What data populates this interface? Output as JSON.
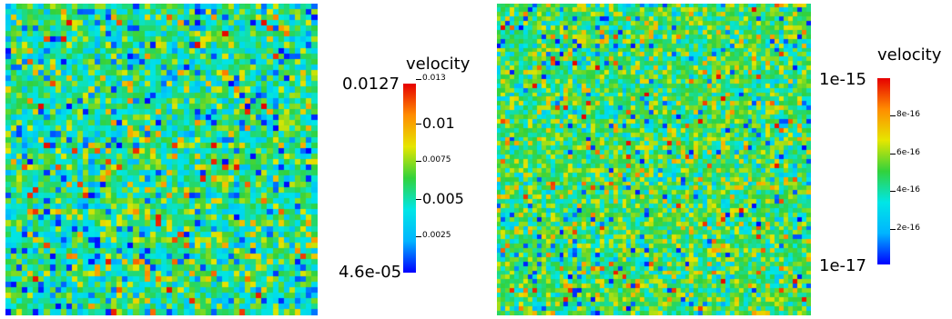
{
  "chart_data": [
    {
      "type": "heatmap",
      "title": "",
      "colorbar": {
        "title": "velocity",
        "range_label_max": "0.0127",
        "range_label_min": "4.6e-05",
        "min": 4.6e-05,
        "max": 0.0127,
        "ticks": [
          {
            "value": 0.013,
            "label": "0.013"
          },
          {
            "value": 0.01,
            "label": "0.01",
            "large": true
          },
          {
            "value": 0.0075,
            "label": "0.0075"
          },
          {
            "value": 0.005,
            "label": "0.005",
            "large": true
          },
          {
            "value": 0.0025,
            "label": "0.0025"
          }
        ],
        "colormap": [
          "#0000ff",
          "#00b4ff",
          "#00e6e6",
          "#32d23c",
          "#e6e600",
          "#ff8c00",
          "#e60000"
        ]
      },
      "grid": {
        "rows": 56,
        "cols": 56,
        "distribution": "mostly cyan/green with blue patches, sparse yellow/red"
      }
    },
    {
      "type": "heatmap",
      "title": "",
      "colorbar": {
        "title": "velocity",
        "range_label_max": "1e-15",
        "range_label_min": "1e-17",
        "min": 1e-17,
        "max": 1e-15,
        "ticks": [
          {
            "value": 8e-16,
            "label": "8e-16"
          },
          {
            "value": 6e-16,
            "label": "6e-16"
          },
          {
            "value": 4e-16,
            "label": "4e-16"
          },
          {
            "value": 2e-16,
            "label": "2e-16"
          }
        ],
        "colormap": [
          "#0000ff",
          "#00b4ff",
          "#00e6e6",
          "#32d23c",
          "#e6e600",
          "#ff8c00",
          "#e60000"
        ]
      },
      "grid": {
        "rows": 70,
        "cols": 70,
        "distribution": "cyan/green dominant with yellow speckles, sparse red and blue"
      }
    }
  ]
}
